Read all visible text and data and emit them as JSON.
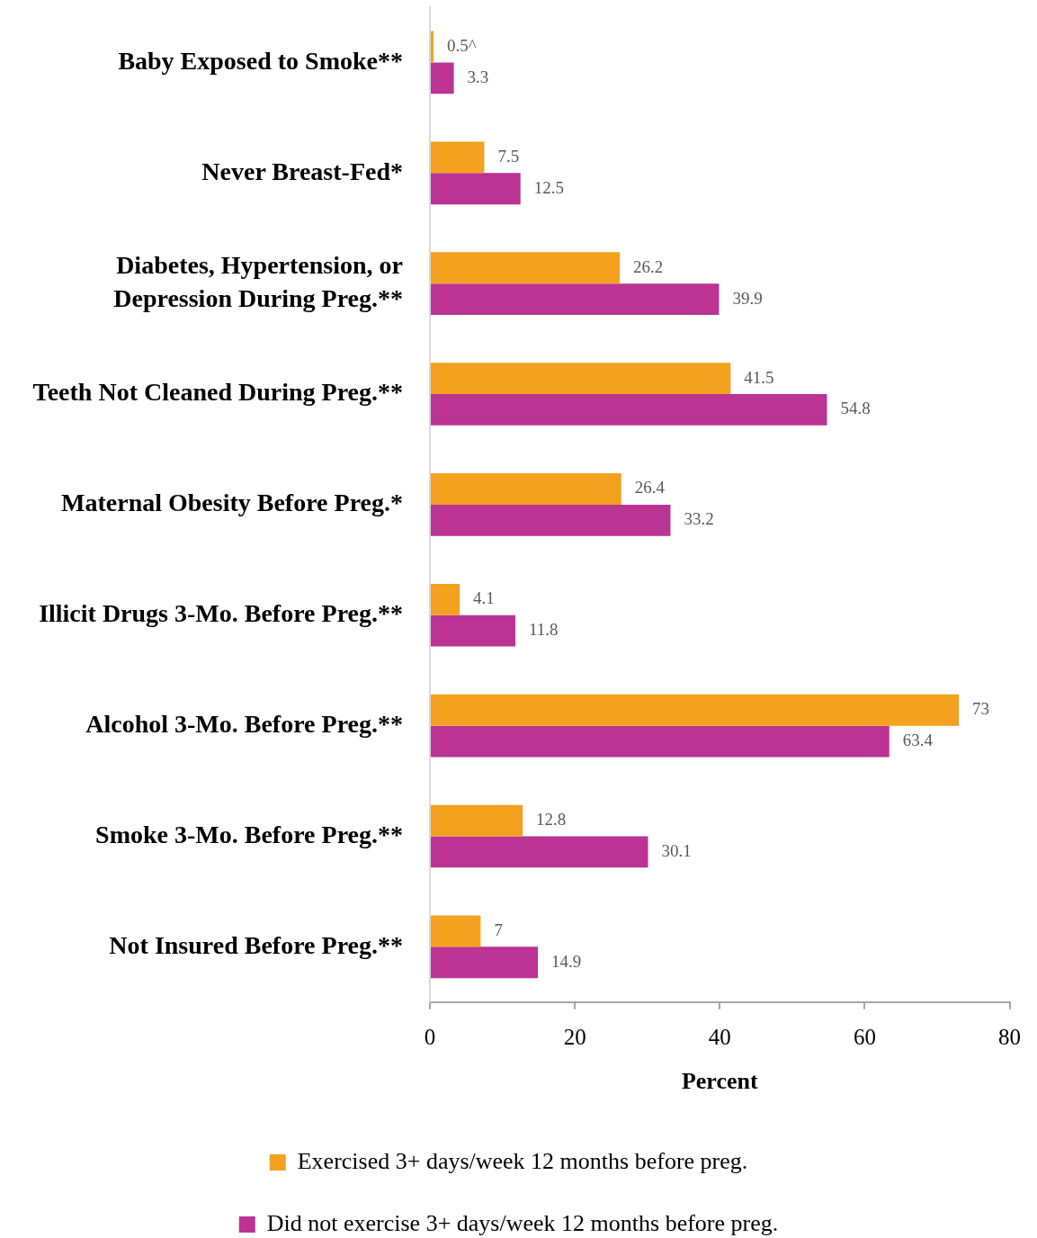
{
  "chart_data": {
    "type": "bar",
    "orientation": "horizontal",
    "categories": [
      "Baby Exposed to Smoke**",
      "Never Breast-Fed*",
      "Diabetes, Hypertension, or Depression During Preg.**",
      "Teeth Not Cleaned During Preg.**",
      "Maternal Obesity Before Preg.*",
      "Illicit Drugs 3-Mo. Before Preg.**",
      "Alcohol 3-Mo. Before Preg.**",
      "Smoke 3-Mo. Before Preg.**",
      "Not Insured Before Preg.**"
    ],
    "series": [
      {
        "name": "Exercised 3+ days/week 12 months before preg.",
        "color": "#f4a11f",
        "values": [
          0.5,
          7.5,
          26.2,
          41.5,
          26.4,
          4.1,
          73,
          12.8,
          7
        ],
        "value_labels": [
          "0.5^",
          "7.5",
          "26.2",
          "41.5",
          "26.4",
          "4.1",
          "73",
          "12.8",
          "7"
        ]
      },
      {
        "name": "Did not exercise 3+ days/week 12 months before preg.",
        "color": "#bb3393",
        "values": [
          3.3,
          12.5,
          39.9,
          54.8,
          33.2,
          11.8,
          63.4,
          30.1,
          14.9
        ],
        "value_labels": [
          "3.3",
          "12.5",
          "39.9",
          "54.8",
          "33.2",
          "11.8",
          "63.4",
          "30.1",
          "14.9"
        ]
      }
    ],
    "xlabel": "Percent",
    "xlim": [
      0,
      80
    ],
    "xticks": [
      0,
      20,
      40,
      60,
      80
    ],
    "legend": "bottom"
  }
}
